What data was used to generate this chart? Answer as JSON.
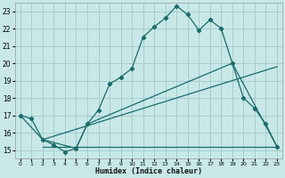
{
  "xlabel": "Humidex (Indice chaleur)",
  "bg_color": "#c8e8e8",
  "grid_color": "#a8cccc",
  "line_color": "#1a6b6b",
  "xlim": [
    -0.5,
    23.5
  ],
  "ylim": [
    14.5,
    23.5
  ],
  "xticks": [
    0,
    1,
    2,
    3,
    4,
    5,
    6,
    7,
    8,
    9,
    10,
    11,
    12,
    13,
    14,
    15,
    16,
    17,
    18,
    19,
    20,
    21,
    22,
    23
  ],
  "yticks": [
    15,
    16,
    17,
    18,
    19,
    20,
    21,
    22,
    23
  ],
  "main_x": [
    0,
    1,
    2,
    3,
    4,
    5,
    6,
    7,
    8,
    9,
    10,
    11,
    12,
    13,
    14,
    15,
    16,
    17,
    18,
    19,
    20,
    21,
    22,
    23
  ],
  "main_y": [
    17.0,
    16.8,
    15.6,
    15.3,
    14.9,
    15.1,
    16.5,
    17.3,
    18.8,
    19.2,
    19.7,
    21.5,
    22.1,
    22.6,
    23.3,
    22.8,
    21.9,
    22.5,
    22.0,
    20.0,
    18.0,
    17.4,
    16.5,
    15.2
  ],
  "line2_x": [
    0,
    2,
    5,
    6,
    19,
    23
  ],
  "line2_y": [
    17.0,
    15.6,
    15.1,
    16.5,
    20.0,
    15.2
  ],
  "line3_x": [
    2,
    23
  ],
  "line3_y": [
    15.6,
    19.8
  ],
  "hline_x": [
    2,
    23
  ],
  "hline_y": [
    15.2,
    15.2
  ]
}
